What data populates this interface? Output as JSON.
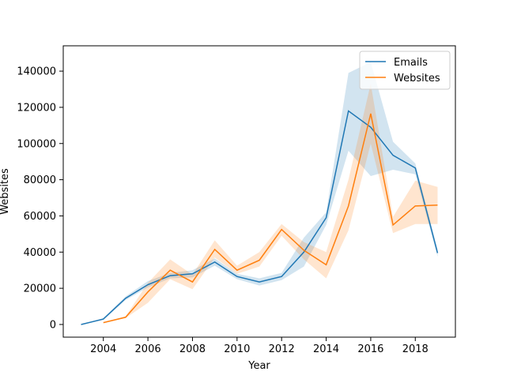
{
  "chart_data": {
    "type": "line",
    "title": "",
    "xlabel": "Year",
    "ylabel": "Websites",
    "xlim": [
      2002.2,
      2019.8
    ],
    "ylim": [
      -7000,
      154000
    ],
    "x_ticks": [
      2004,
      2006,
      2008,
      2010,
      2012,
      2014,
      2016,
      2018
    ],
    "y_ticks": [
      0,
      20000,
      40000,
      60000,
      80000,
      100000,
      120000,
      140000
    ],
    "grid": false,
    "legend_position": "top-right",
    "series": [
      {
        "name": "Emails",
        "color": "#1f77b4",
        "x": [
          2003,
          2004,
          2005,
          2006,
          2007,
          2008,
          2009,
          2010,
          2011,
          2012,
          2013,
          2014,
          2015,
          2016,
          2017,
          2018,
          2019
        ],
        "values": [
          0,
          3000,
          14500,
          22000,
          27000,
          28000,
          34500,
          26500,
          23500,
          26500,
          40000,
          59000,
          118000,
          109000,
          93500,
          86500,
          39500
        ],
        "ci_low": [
          0,
          2500,
          13500,
          20500,
          25500,
          26000,
          32500,
          25000,
          21500,
          24500,
          32000,
          55000,
          96000,
          82000,
          85500,
          83000,
          37500
        ],
        "ci_high": [
          0,
          3500,
          15500,
          24000,
          28500,
          30000,
          36500,
          28000,
          25500,
          28500,
          48000,
          62000,
          139000,
          145000,
          101000,
          89000,
          41500
        ]
      },
      {
        "name": "Websites",
        "color": "#ff7f0e",
        "x": [
          2004,
          2005,
          2006,
          2007,
          2008,
          2009,
          2010,
          2011,
          2012,
          2013,
          2014,
          2015,
          2016,
          2017,
          2018,
          2019
        ],
        "values": [
          1000,
          4000,
          18000,
          30000,
          23500,
          41500,
          30000,
          35500,
          52500,
          41000,
          33000,
          65500,
          116500,
          55000,
          65500,
          66000
        ],
        "ci_low": [
          1000,
          3500,
          12000,
          25000,
          19500,
          37000,
          28000,
          32000,
          49000,
          36000,
          25500,
          52000,
          100000,
          50500,
          55500,
          55500
        ],
        "ci_high": [
          1000,
          4500,
          23000,
          36000,
          27500,
          46500,
          32500,
          40000,
          55500,
          45500,
          40000,
          80000,
          133000,
          59500,
          79500,
          76000
        ]
      }
    ]
  }
}
